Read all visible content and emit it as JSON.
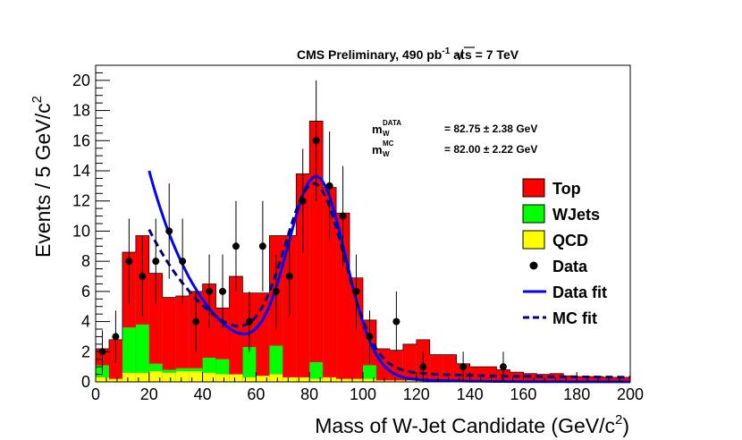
{
  "chart_data": {
    "type": "bar",
    "title_parts": {
      "prefix": "CMS Preliminary, 490 pb",
      "lumi_sup": "-1",
      "at": " at ",
      "sqrt_sym": "√",
      "s": "s",
      "energy": " = 7 TeV"
    },
    "xlabel_parts": {
      "main": "Mass of W-Jet Candidate (GeV/c",
      "sup": "2",
      "end": ")"
    },
    "ylabel_parts": {
      "main": "Events / 5 GeV/c",
      "sup": "2"
    },
    "xlim": [
      0,
      200
    ],
    "ylim": [
      0,
      21
    ],
    "bin_width": 5,
    "x_ticks": [
      "0",
      "20",
      "40",
      "60",
      "80",
      "100",
      "120",
      "140",
      "160",
      "180",
      "200"
    ],
    "y_ticks": [
      "0",
      "2",
      "4",
      "6",
      "8",
      "10",
      "12",
      "14",
      "16",
      "18",
      "20"
    ],
    "annotations": {
      "data_label_m": "m",
      "data_label_sub": "W",
      "data_label_sup": "DATA",
      "data_value": "= 82.75 ±  2.38 GeV",
      "mc_label_m": "m",
      "mc_label_sub": "W",
      "mc_label_sup": "MC",
      "mc_value": "= 82.00 ±  2.22 GeV"
    },
    "legend": [
      {
        "label": "Top",
        "kind": "box",
        "color": "#ff0000"
      },
      {
        "label": "WJets",
        "kind": "box",
        "color": "#00ff00"
      },
      {
        "label": "QCD",
        "kind": "box",
        "color": "#ffff00"
      },
      {
        "label": "Data",
        "kind": "marker",
        "color": "#000000"
      },
      {
        "label": "Data fit",
        "kind": "line",
        "color": "#0000ff"
      },
      {
        "label": "MC fit",
        "kind": "dash",
        "color": "#000080"
      }
    ],
    "stack_bins_x_low": [
      0,
      5,
      10,
      15,
      20,
      25,
      30,
      35,
      40,
      45,
      50,
      55,
      60,
      65,
      70,
      75,
      80,
      85,
      90,
      95,
      100,
      105,
      110,
      115,
      120,
      125,
      130,
      135,
      140,
      145,
      150,
      155,
      160,
      165,
      170,
      175,
      180,
      185,
      190,
      195
    ],
    "series": [
      {
        "name": "QCD",
        "color": "#ffff00",
        "values": [
          0.3,
          0.2,
          0.6,
          0.6,
          0.7,
          0.6,
          0.7,
          0.7,
          0.6,
          0.5,
          0.5,
          0.3,
          0.4,
          0.5,
          0.3,
          0.3,
          0.2,
          0.3,
          0.2,
          0.2,
          0.2,
          0.1,
          0.1,
          0.1,
          0.1,
          0.1,
          0.1,
          0.1,
          0.1,
          0.1,
          0.1,
          0.05,
          0.05,
          0.05,
          0.05,
          0.05,
          0.05,
          0.05,
          0.05,
          0.05
        ]
      },
      {
        "name": "WJets",
        "color": "#00ff00",
        "values": [
          0.8,
          0.0,
          3.0,
          3.2,
          0.5,
          0.2,
          0.2,
          0.2,
          1.0,
          1.0,
          0.0,
          2.0,
          0.0,
          1.9,
          0.0,
          0.0,
          1.1,
          0.0,
          0.0,
          0.0,
          0.9,
          0.0,
          0.0,
          0.0,
          0.0,
          0.0,
          0.0,
          0.0,
          0.0,
          0.0,
          0.0,
          0.0,
          0.0,
          0.0,
          0.0,
          0.0,
          0.0,
          0.0,
          0.0,
          0.0
        ]
      },
      {
        "name": "Top",
        "color": "#ff0000",
        "values": [
          1.1,
          2.6,
          5.0,
          5.9,
          6.0,
          4.8,
          4.8,
          5.1,
          4.9,
          3.4,
          6.5,
          3.6,
          5.5,
          7.3,
          9.4,
          13.5,
          16.0,
          12.6,
          11.0,
          6.7,
          3.0,
          2.1,
          2.0,
          2.4,
          2.7,
          1.7,
          1.7,
          1.1,
          0.9,
          0.9,
          0.7,
          0.6,
          0.5,
          0.45,
          0.5,
          0.35,
          0.3,
          0.3,
          0.25,
          0.25
        ]
      }
    ],
    "data_points": {
      "x": [
        2.5,
        7.5,
        12.5,
        17.5,
        22.5,
        27.5,
        32.5,
        37.5,
        42.5,
        47.5,
        52.5,
        57.5,
        62.5,
        67.5,
        72.5,
        77.5,
        82.5,
        87.5,
        92.5,
        97.5,
        102.5,
        112.5,
        122.5,
        137.5,
        152.5
      ],
      "y": [
        2,
        3,
        8,
        7,
        8,
        10,
        8,
        4,
        6,
        6,
        9,
        4,
        9,
        6,
        7,
        12,
        16,
        13,
        11,
        6,
        3,
        4,
        1,
        1,
        1
      ]
    },
    "fits": [
      {
        "name": "Data fit",
        "style": "solid",
        "color": "#0000ff",
        "x_range": [
          20,
          200
        ],
        "peak_x": 82.75,
        "peak_amp": 12.9,
        "sigma": 10.8,
        "bkg_amp": 14.0,
        "bkg_slope": 0.047
      },
      {
        "name": "MC fit",
        "style": "dashed",
        "color": "#000080",
        "x_range": [
          20,
          200
        ],
        "peak_x": 82.0,
        "peak_amp": 11.8,
        "sigma": 11.2,
        "bkg_amp": 9.8,
        "bkg_slope": 0.036,
        "bkg_floor": 0.3
      }
    ]
  }
}
